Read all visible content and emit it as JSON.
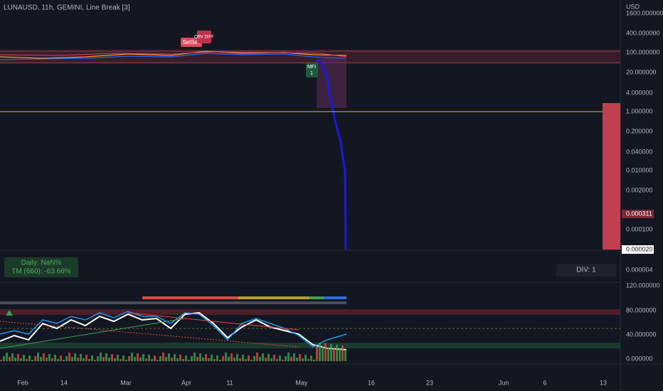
{
  "header": {
    "title": "LUNAUSD, 11h, GEMINI, Line Break [3]",
    "currency": "USD"
  },
  "price_axis": [
    "1600.000000",
    "400.000000",
    "100.000000",
    "20.000000",
    "4.000000",
    "1.000000",
    "0.200000",
    "0.040000",
    "0.010000",
    "0.002000",
    "0.000100",
    "0.000004"
  ],
  "price_badges": {
    "last": "0.000311",
    "current": "0.000020"
  },
  "oscillator_axis": [
    "120.000000",
    "80.000000",
    "40.000000",
    "0.000000"
  ],
  "time_axis": [
    "Feb",
    "14",
    "Mar",
    "Apr",
    "11",
    "May",
    "16",
    "23",
    "Jun",
    "6",
    "13"
  ],
  "markers": {
    "sell": "SetSell",
    "obv": "OBV DIFF",
    "mfi": "MFI",
    "mfi_count": "1"
  },
  "stats": {
    "daily": "Daily: NaN%",
    "tm": "TM (660): -63.66%",
    "div": "DIV: 1"
  }
}
